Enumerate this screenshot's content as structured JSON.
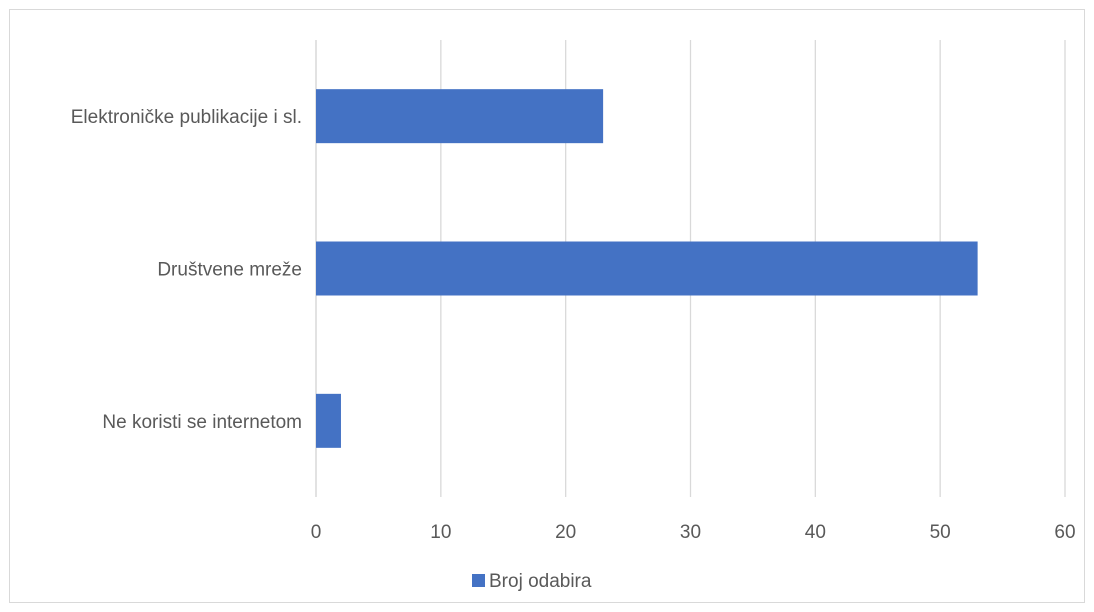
{
  "chart_data": {
    "type": "bar",
    "orientation": "horizontal",
    "categories": [
      "Elektroničke publikacije i sl.",
      "Društvene mreže",
      "Ne koristi se internetom"
    ],
    "series": [
      {
        "name": "Broj odabira",
        "values": [
          23,
          53,
          2
        ],
        "color": "#4472c4"
      }
    ],
    "xlim": [
      0,
      60
    ],
    "xticks": [
      0,
      10,
      20,
      30,
      40,
      50,
      60
    ],
    "grid": true,
    "legend_position": "bottom"
  }
}
